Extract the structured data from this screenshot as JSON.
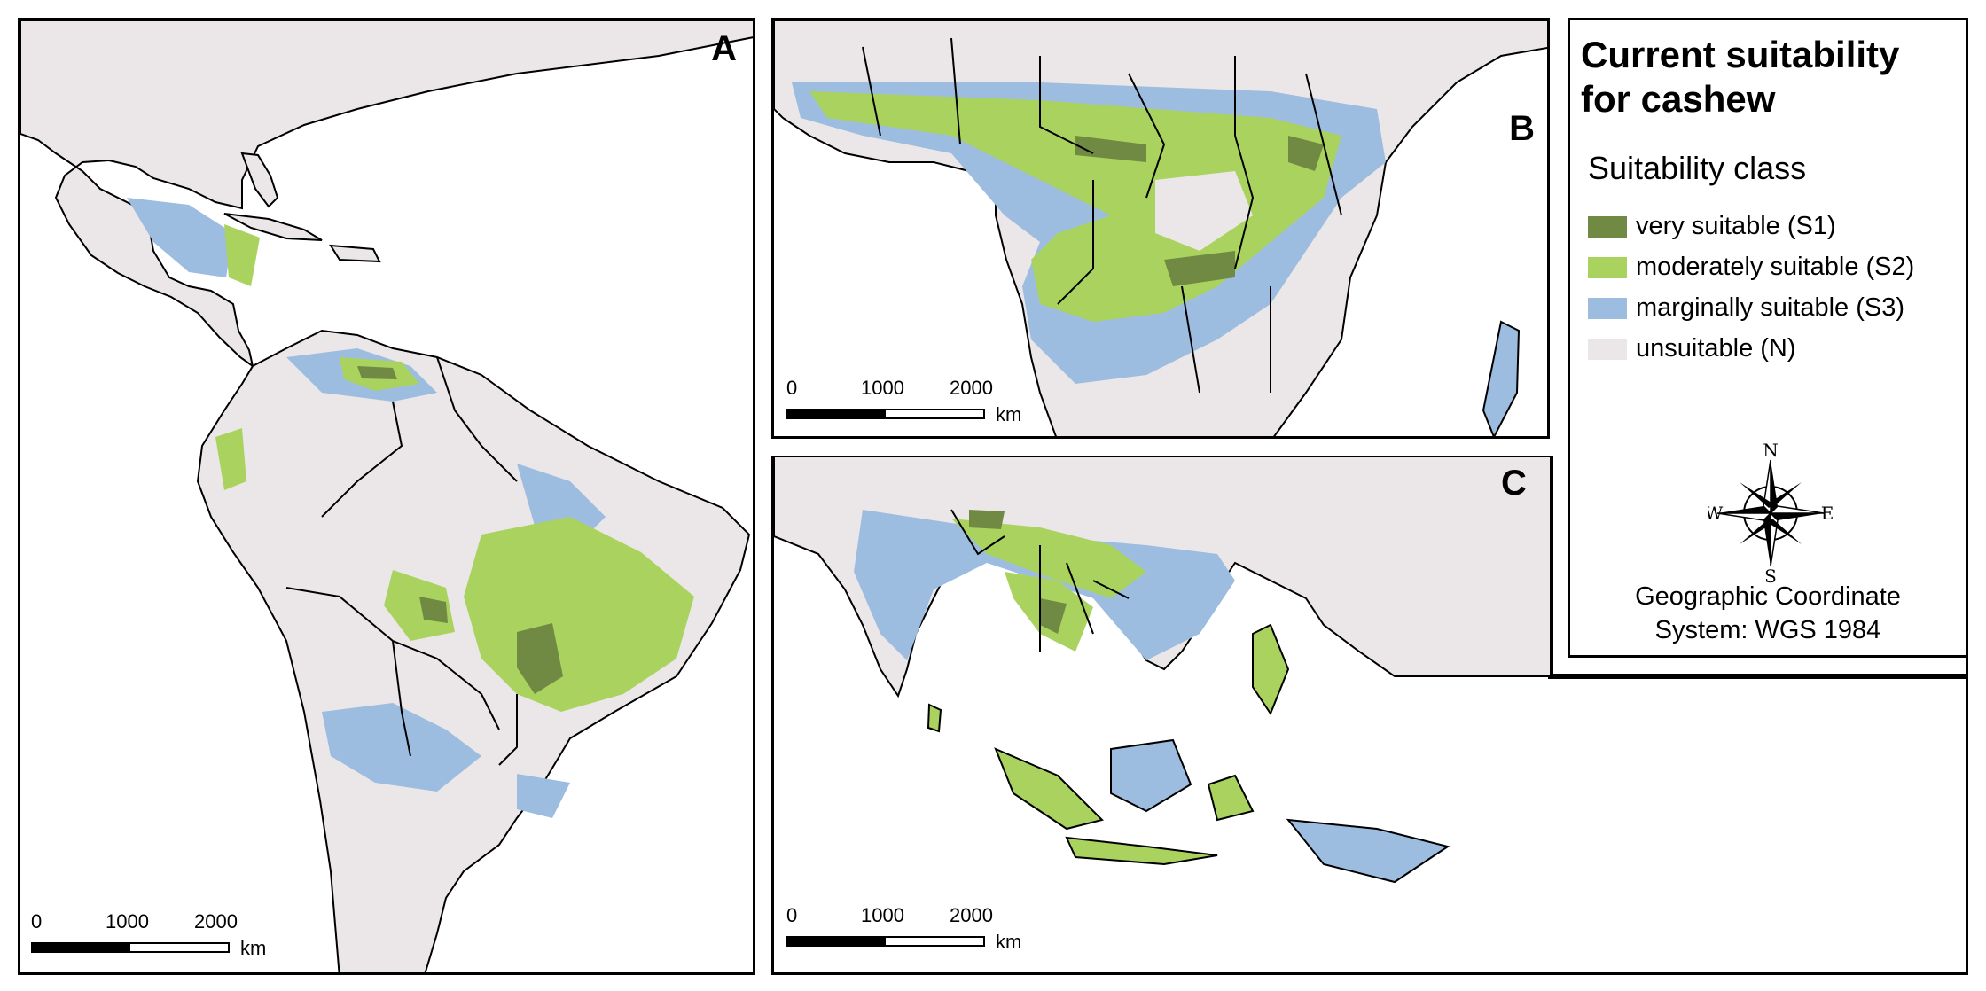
{
  "panels": {
    "a": {
      "label": "A"
    },
    "b": {
      "label": "B"
    },
    "c": {
      "label": "C"
    }
  },
  "scalebar": {
    "ticks": [
      "0",
      "1000",
      "2000"
    ],
    "unit": "km"
  },
  "legend": {
    "title": "Current suitability for cashew",
    "subtitle": "Suitability class",
    "items": [
      {
        "label": "very suitable (S1)",
        "color": "#718a43"
      },
      {
        "label": "moderately suitable (S2)",
        "color": "#a9d35e"
      },
      {
        "label": "marginally suitable (S3)",
        "color": "#9dbde0"
      },
      {
        "label": "unsuitable (N)",
        "color": "#ebe7e8"
      }
    ]
  },
  "compass": {
    "n": "N",
    "s": "S",
    "e": "E",
    "w": "W"
  },
  "coordinate_system": {
    "line1": "Geographic Coordinate",
    "line2": "System: WGS 1984"
  },
  "colors": {
    "land": "#ebe7e8",
    "water": "#ffffff",
    "border": "#000000"
  }
}
